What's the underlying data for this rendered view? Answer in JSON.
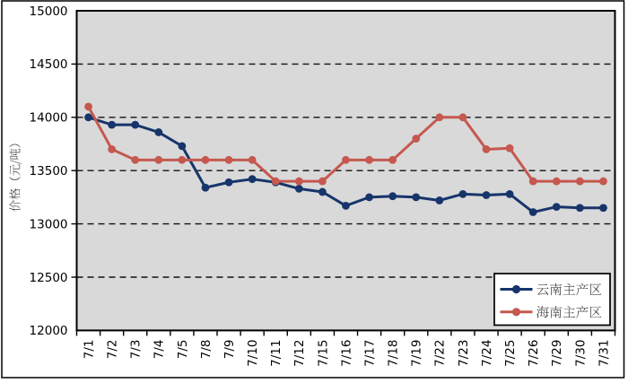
{
  "chart_data": {
    "type": "line",
    "title": "",
    "categories": [
      "7/1",
      "7/2",
      "7/3",
      "7/4",
      "7/5",
      "7/8",
      "7/9",
      "7/10",
      "7/11",
      "7/12",
      "7/15",
      "7/16",
      "7/17",
      "7/18",
      "7/19",
      "7/22",
      "7/23",
      "7/24",
      "7/25",
      "7/26",
      "7/29",
      "7/30",
      "7/31"
    ],
    "series": [
      {
        "name": "云南主产区",
        "color": "#17356B",
        "values": [
          14000,
          13930,
          13930,
          13860,
          13730,
          13340,
          13390,
          13420,
          13390,
          13330,
          13300,
          13170,
          13250,
          13260,
          13250,
          13220,
          13280,
          13270,
          13280,
          13110,
          13160,
          13150,
          13150
        ]
      },
      {
        "name": "海南主产区",
        "color": "#C5584F",
        "values": [
          14100,
          13700,
          13600,
          13600,
          13600,
          13600,
          13600,
          13600,
          13400,
          13400,
          13400,
          13600,
          13600,
          13600,
          13800,
          14000,
          14000,
          13700,
          13710,
          13400,
          13400,
          13400,
          13400
        ]
      }
    ],
    "xlabel": "",
    "ylabel": "价格（元/吨）",
    "ylim": [
      12000,
      15000
    ],
    "ytick_step": 500,
    "ytick_labels": [
      "15000",
      "14500",
      "14000",
      "13500",
      "13000",
      "12500",
      "12000"
    ],
    "grid": "dashed-horizontal",
    "legend_position": "bottom-right",
    "plot_background": "#D9D9D9",
    "marker": "circle"
  },
  "legend": {
    "items": [
      {
        "label": "云南主产区",
        "color": "#17356B"
      },
      {
        "label": "海南主产区",
        "color": "#C5584F"
      }
    ]
  }
}
